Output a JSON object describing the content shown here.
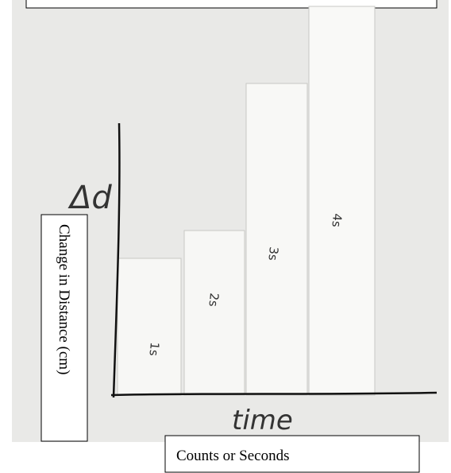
{
  "photo": {
    "axis_label_handwritten": "Δd",
    "time_label_handwritten": "time",
    "strip_labels": [
      "1s",
      "2s",
      "3s",
      "4s"
    ]
  },
  "labels": {
    "y_axis": "Change in Distance (cm)",
    "x_axis": "Counts or Seconds"
  }
}
